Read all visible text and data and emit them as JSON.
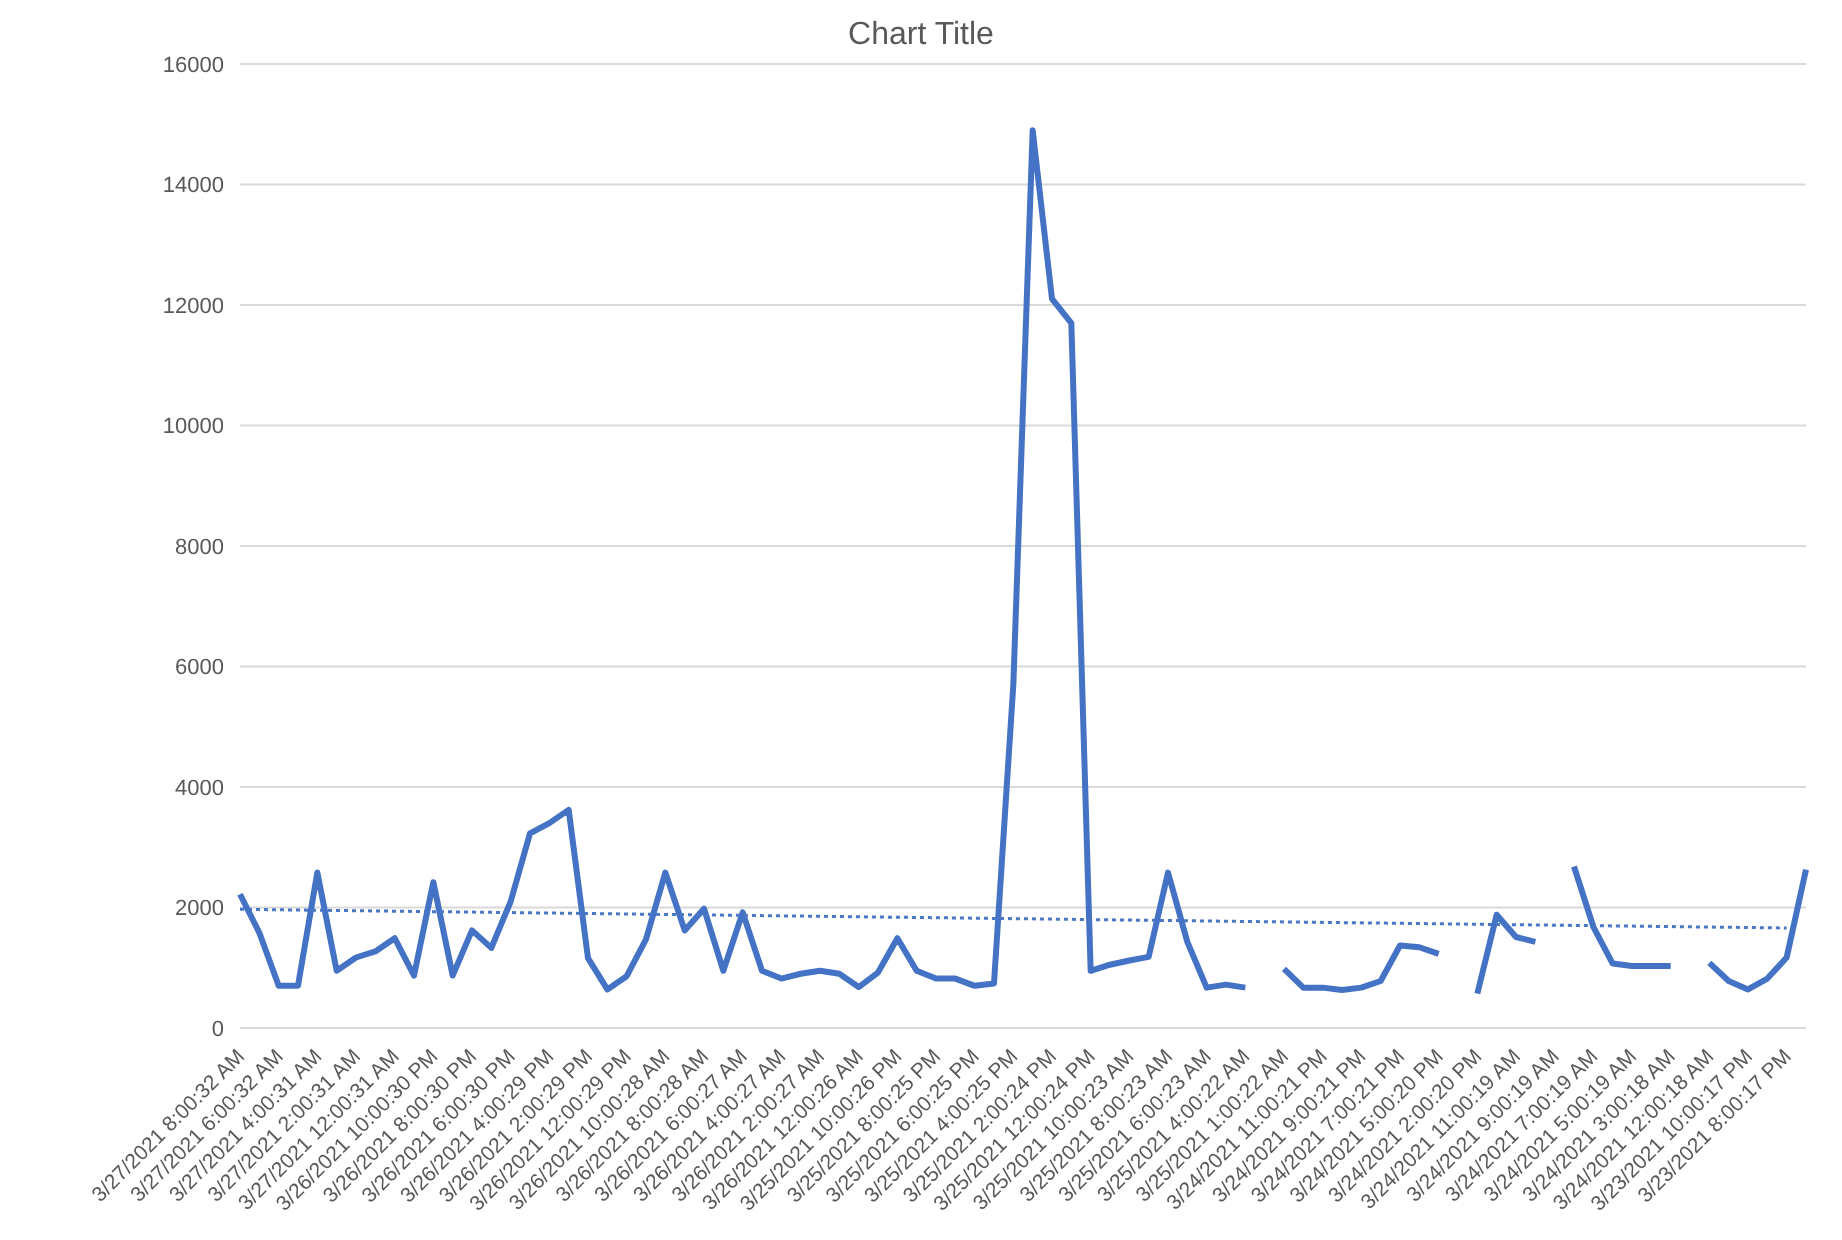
{
  "chart_data": {
    "type": "line",
    "title": "Chart Title",
    "categories": [
      "3/27/2021 8:00:32 AM",
      null,
      "3/27/2021 6:00:32 AM",
      null,
      "3/27/2021 4:00:31 AM",
      null,
      "3/27/2021 2:00:31 AM",
      null,
      "3/27/2021 12:00:31 AM",
      null,
      "3/26/2021 10:00:30 PM",
      null,
      "3/26/2021 8:00:30 PM",
      null,
      "3/26/2021 6:00:30 PM",
      null,
      "3/26/2021 4:00:29 PM",
      null,
      "3/26/2021 2:00:29 PM",
      null,
      "3/26/2021 12:00:29 PM",
      null,
      "3/26/2021 10:00:28 AM",
      null,
      "3/26/2021 8:00:28 AM",
      null,
      "3/26/2021 6:00:27 AM",
      null,
      "3/26/2021 4:00:27 AM",
      null,
      "3/26/2021 2:00:27 AM",
      null,
      "3/26/2021 12:00:26 AM",
      null,
      "3/25/2021 10:00:26 PM",
      null,
      "3/25/2021 8:00:25 PM",
      null,
      "3/25/2021 6:00:25 PM",
      null,
      "3/25/2021 4:00:25 PM",
      null,
      "3/25/2021 2:00:24 PM",
      null,
      "3/25/2021 12:00:24 PM",
      null,
      "3/25/2021 10:00:23 AM",
      null,
      "3/25/2021 8:00:23 AM",
      null,
      "3/25/2021 6:00:23 AM",
      null,
      "3/25/2021 4:00:22 AM",
      null,
      "3/25/2021 1:00:22 AM",
      null,
      "3/24/2021 11:00:21 PM",
      null,
      "3/24/2021 9:00:21 PM",
      null,
      "3/24/2021 7:00:21 PM",
      null,
      "3/24/2021 5:00:20 PM",
      null,
      "3/24/2021 2:00:20 PM",
      null,
      "3/24/2021 11:00:19 AM",
      null,
      "3/24/2021 9:00:19 AM",
      null,
      "3/24/2021 7:00:19 AM",
      null,
      "3/24/2021 5:00:19 AM",
      null,
      "3/24/2021 3:00:18 AM",
      null,
      "3/24/2021 12:00:18 AM",
      null,
      "3/23/2021 10:00:17 PM",
      null,
      "3/23/2021 8:00:17 PM",
      null
    ],
    "series": [
      {
        "color": "#4472c4",
        "line_style": "solid",
        "values": [
          2220,
          1580,
          700,
          700,
          2580,
          950,
          1170,
          1270,
          1490,
          870,
          2420,
          870,
          1620,
          1330,
          2100,
          3230,
          3400,
          3620,
          1160,
          640,
          860,
          1470,
          2580,
          1620,
          1980,
          950,
          1920,
          950,
          820,
          900,
          950,
          900,
          680,
          920,
          1490,
          950,
          820,
          820,
          700,
          740,
          5700,
          14900,
          12100,
          11700,
          950,
          1050,
          1120,
          1180,
          2580,
          1430,
          670,
          720,
          670,
          null,
          980,
          670,
          670,
          630,
          670,
          780,
          1370,
          1340,
          1230,
          null,
          570,
          1880,
          1510,
          1430,
          null,
          2680,
          1680,
          1070,
          1030,
          1030,
          1030,
          null,
          1080,
          780,
          640,
          820,
          1170,
          2630
        ]
      },
      {
        "type": "line",
        "color": "#4a76c6",
        "line_style": "dotted",
        "x": [
          "3/27/2021 8:00:32 AM",
          "3/23/2021 8:00:17 PM"
        ],
        "values": [
          1970,
          1660
        ]
      }
    ],
    "ylim": [
      0,
      16000
    ],
    "yticks": [
      0,
      2000,
      4000,
      6000,
      8000,
      10000,
      12000,
      14000,
      16000
    ],
    "grid": "y",
    "legend": false,
    "marker": "none"
  }
}
